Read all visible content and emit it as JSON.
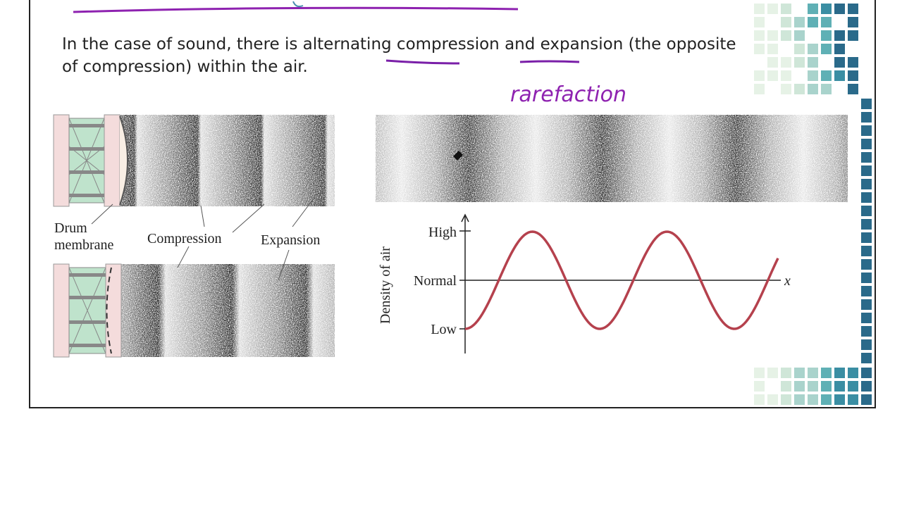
{
  "text": {
    "lines": [
      "In the case of sound, there is alternating compression and expansion (the opposite",
      "of compression) within the air."
    ]
  },
  "annotation": "rarefaction",
  "figure": {
    "drum_label": [
      "Drum",
      "membrane"
    ],
    "compression": "Compression",
    "expansion": "Expansion"
  },
  "graph": {
    "y_label": "Density of air",
    "levels": [
      "High",
      "Normal",
      "Low"
    ],
    "x_label": "x"
  }
}
